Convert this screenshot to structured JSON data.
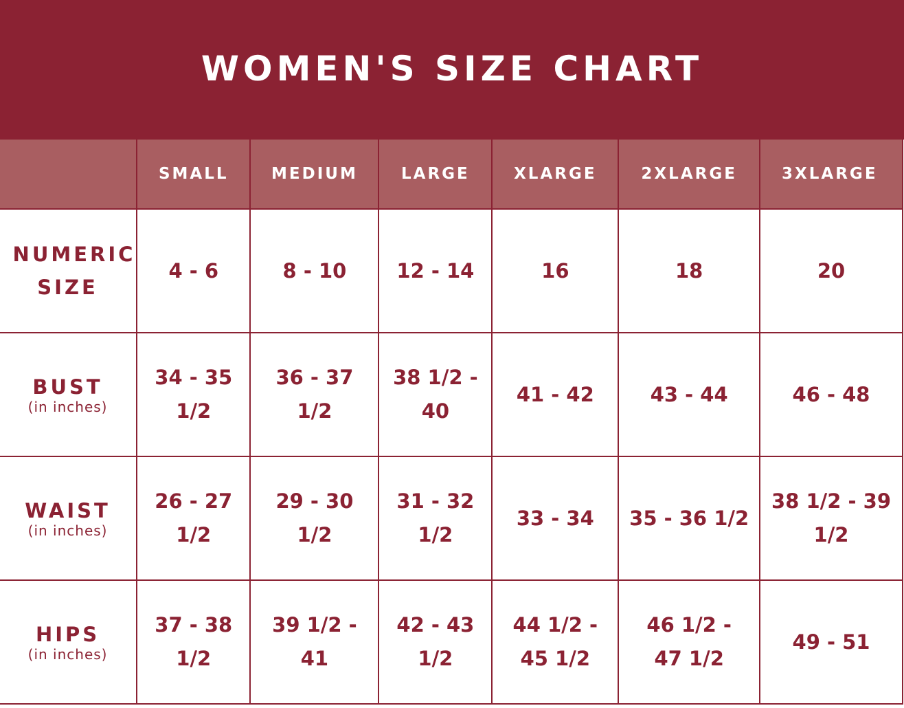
{
  "title": "WOMEN'S SIZE CHART",
  "columns": [
    "",
    "SMALL",
    "MEDIUM",
    "LARGE",
    "XLARGE",
    "2XLARGE",
    "3XLARGE"
  ],
  "rows": [
    {
      "label": "NUMERIC SIZE",
      "sub": "",
      "values": [
        "4 - 6",
        "8 - 10",
        "12 - 14",
        "16",
        "18",
        "20"
      ]
    },
    {
      "label": "BUST",
      "sub": "(in inches)",
      "values": [
        "34 - 35 1/2",
        "36 - 37 1/2",
        "38 1/2 - 40",
        "41 - 42",
        "43 - 44",
        "46 - 48"
      ]
    },
    {
      "label": "WAIST",
      "sub": "(in inches)",
      "values": [
        "26 - 27 1/2",
        "29 - 30 1/2",
        "31 - 32 1/2",
        "33 - 34",
        "35 - 36 1/2",
        "38 1/2 - 39 1/2"
      ]
    },
    {
      "label": "HIPS",
      "sub": "(in inches)",
      "values": [
        "37 - 38 1/2",
        "39 1/2 - 41",
        "42 - 43 1/2",
        "44 1/2 - 45 1/2",
        "46 1/2 - 47 1/2",
        "49 - 51"
      ]
    }
  ],
  "colors": {
    "banner": "#8b2233",
    "header_row": "#a95e61",
    "text": "#8b2233"
  }
}
